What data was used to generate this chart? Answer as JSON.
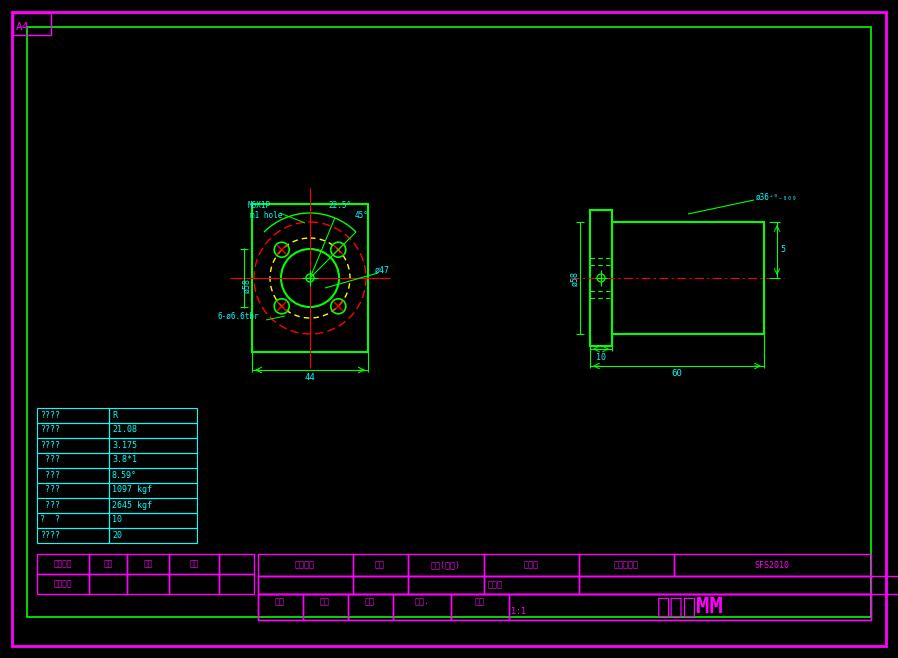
{
  "bg_color": "#000000",
  "border_outer_color": "#ff00ff",
  "border_inner_color": "#00ff00",
  "cyan_color": "#00ffff",
  "red_color": "#ff0000",
  "yellow_color": "#ffff00",
  "green_color": "#00ff00",
  "magenta_color": "#ff00ff",
  "gray_bg": "#6e7f8f",
  "drawing_title": "SFS2010",
  "unit_text": "单位：MM",
  "scale_text": "1:1",
  "table_rows": [
    [
      "????",
      "R"
    ],
    [
      "????",
      "21.08"
    ],
    [
      "????",
      "3.175"
    ],
    [
      " ???",
      "3.8*1"
    ],
    [
      " ???",
      "8.59°"
    ],
    [
      " ???",
      "1097 kgf"
    ],
    [
      " ???",
      "2645 kgf"
    ],
    [
      "?  ?",
      "10"
    ],
    [
      "????",
      "20"
    ]
  ],
  "title_block_labels_row1": [
    "客户名称",
    "日期",
    "数量(单台)",
    "图号：",
    "存档图号：",
    "SFS2010"
  ],
  "title_block_labels_row2": [
    "材料："
  ],
  "title_block_labels_row3": [
    "制图",
    "设计",
    "审核",
    "视角.",
    "比例",
    "单位：MM"
  ],
  "rev_block_row1": [
    "更改标记",
    "处处",
    "日期",
    "签名"
  ],
  "rev_block_row2": [
    "客户确认"
  ]
}
